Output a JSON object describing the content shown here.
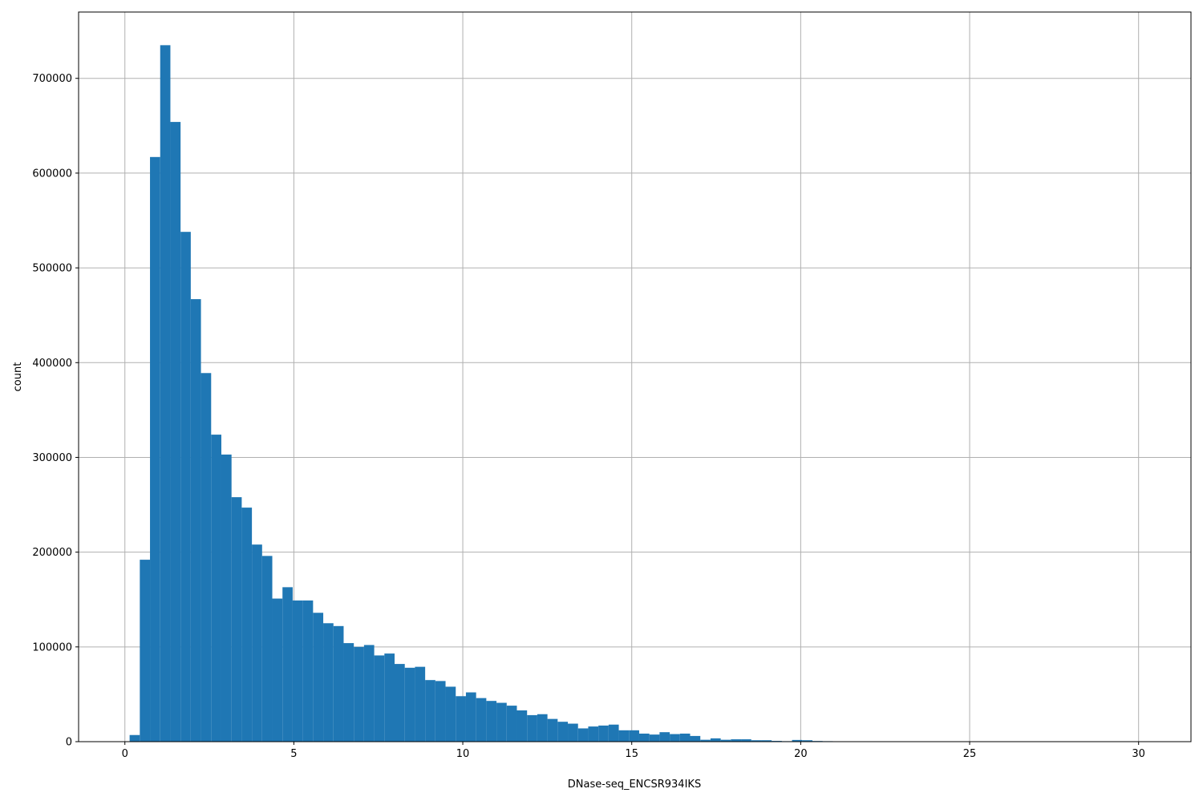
{
  "chart_data": {
    "type": "bar",
    "subtype": "histogram",
    "title": "",
    "xlabel": "DNase-seq_ENCSR934IKS",
    "ylabel": "count",
    "xlim": [
      -1.37,
      31.55
    ],
    "ylim": [
      0,
      770000
    ],
    "grid": true,
    "bar_color": "#1f77b4",
    "bin_start": 0.14,
    "bin_width": 0.3016,
    "xticks": [
      "0",
      "5",
      "10",
      "15",
      "20",
      "25",
      "30"
    ],
    "yticks": [
      "0",
      "100000",
      "200000",
      "300000",
      "400000",
      "500000",
      "600000",
      "700000"
    ],
    "values": [
      7000,
      192000,
      617000,
      735000,
      654000,
      538000,
      467000,
      389000,
      324000,
      303000,
      258000,
      247000,
      208000,
      196000,
      151000,
      163000,
      149000,
      149000,
      136000,
      125000,
      122000,
      104000,
      100000,
      102000,
      91000,
      93000,
      82000,
      78000,
      79000,
      65000,
      64000,
      58000,
      48000,
      52000,
      46000,
      43000,
      41000,
      38000,
      33000,
      28000,
      29000,
      24000,
      21000,
      19000,
      14000,
      16000,
      17000,
      18000,
      12000,
      12000,
      8500,
      7500,
      10000,
      8000,
      8500,
      6000,
      2000,
      3500,
      2000,
      2500,
      2500,
      1500,
      1500,
      800,
      500,
      1800,
      1500,
      700,
      500,
      400,
      300,
      200,
      0,
      0,
      0,
      0,
      0,
      0,
      0,
      0,
      0,
      0,
      0,
      0,
      0,
      0,
      0,
      0,
      0,
      0,
      0,
      0,
      0,
      0,
      0,
      0,
      0,
      0,
      0,
      100
    ]
  }
}
